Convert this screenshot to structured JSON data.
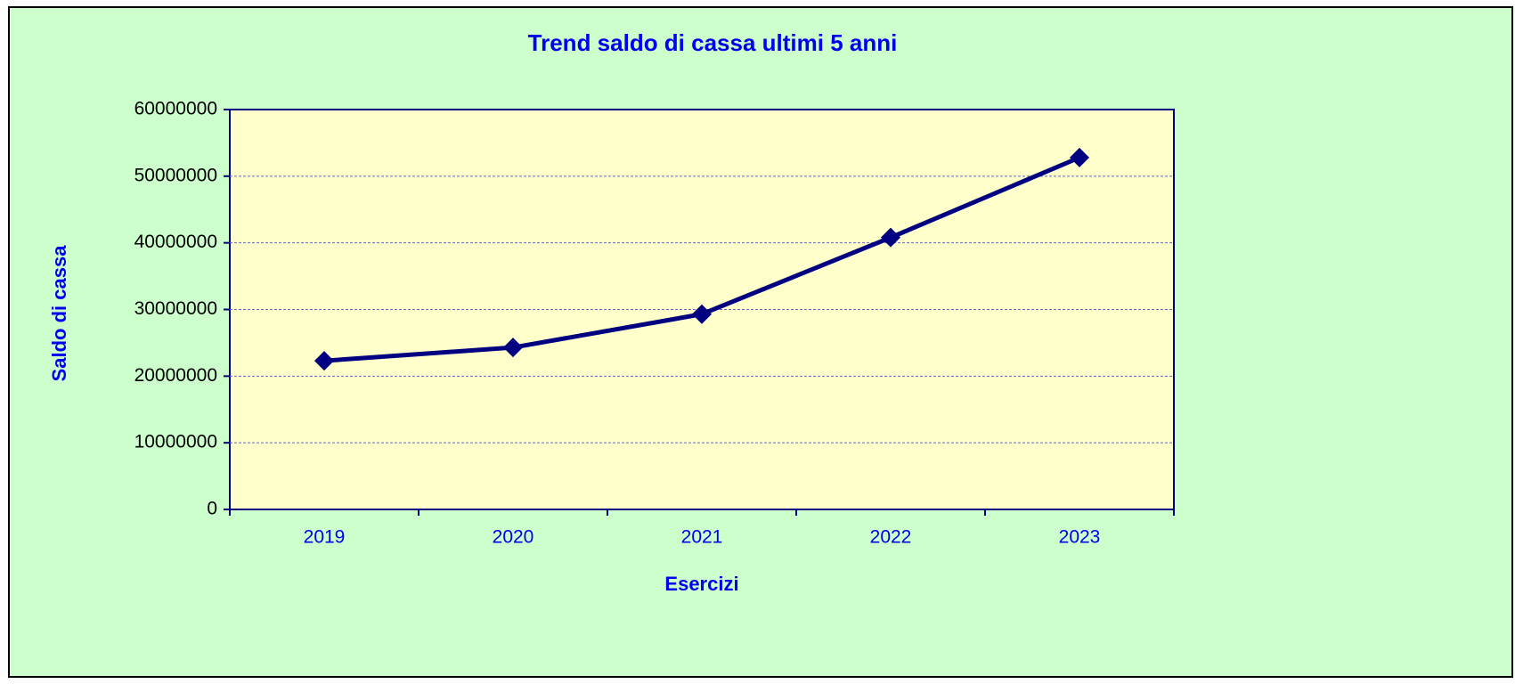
{
  "chart_data": {
    "type": "line",
    "title": "Trend saldo di cassa ultimi 5 anni",
    "x_label": "Esercizi",
    "y_label": "Saldo di cassa",
    "categories": [
      "2019",
      "2020",
      "2021",
      "2022",
      "2023"
    ],
    "series": [
      {
        "name": "Saldo di cassa",
        "color": "#000080",
        "values": [
          22300000,
          24300000,
          29300000,
          40800000,
          52800000
        ]
      }
    ],
    "ylim": [
      0,
      60000000
    ],
    "yticks": [
      0,
      10000000,
      20000000,
      30000000,
      40000000,
      50000000,
      60000000
    ],
    "grid": true
  }
}
